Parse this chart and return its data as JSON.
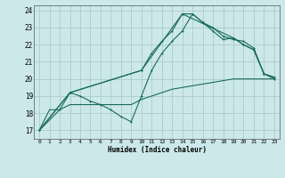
{
  "background_color": "#cce8ea",
  "grid_color": "#aacccc",
  "line_color": "#1a6b5a",
  "xlabel": "Humidex (Indice chaleur)",
  "xlim": [
    -0.5,
    23.5
  ],
  "ylim": [
    16.5,
    24.3
  ],
  "yticks": [
    17,
    18,
    19,
    20,
    21,
    22,
    23,
    24
  ],
  "xticks": [
    0,
    1,
    2,
    3,
    4,
    5,
    6,
    7,
    8,
    9,
    10,
    11,
    12,
    13,
    14,
    15,
    16,
    17,
    18,
    19,
    20,
    21,
    22,
    23
  ],
  "line1_x": [
    0,
    1,
    2,
    3,
    4,
    5,
    6,
    7,
    8,
    9,
    10,
    11,
    12,
    13,
    14,
    15,
    16,
    17,
    18,
    19,
    20,
    21,
    22,
    23
  ],
  "line1_y": [
    17.0,
    18.2,
    18.2,
    18.5,
    18.5,
    18.5,
    18.5,
    18.5,
    18.5,
    18.5,
    18.8,
    19.0,
    19.2,
    19.4,
    19.5,
    19.6,
    19.7,
    19.8,
    19.9,
    20.0,
    20.0,
    20.0,
    20.0,
    20.0
  ],
  "line2_x": [
    0,
    2,
    3,
    4,
    5,
    6,
    7,
    8,
    9,
    10,
    11,
    12,
    13,
    14,
    15,
    16,
    17,
    18,
    19,
    20,
    21,
    22,
    23
  ],
  "line2_y": [
    17.0,
    18.2,
    19.2,
    19.0,
    18.7,
    18.5,
    18.2,
    17.8,
    17.5,
    19.0,
    20.5,
    21.5,
    22.2,
    22.8,
    23.8,
    23.3,
    23.0,
    22.5,
    22.3,
    22.2,
    21.8,
    20.3,
    20.0
  ],
  "line3_x": [
    0,
    3,
    10,
    11,
    12,
    13,
    14,
    15,
    16,
    17,
    18,
    19,
    20,
    21,
    22,
    23
  ],
  "line3_y": [
    17.0,
    19.2,
    20.5,
    21.5,
    22.2,
    22.8,
    23.8,
    23.8,
    23.3,
    22.8,
    22.3,
    22.4,
    22.0,
    21.7,
    20.3,
    20.1
  ],
  "line4_x": [
    0,
    3,
    10,
    14,
    19,
    20,
    21,
    22,
    23
  ],
  "line4_y": [
    17.0,
    19.2,
    20.5,
    23.8,
    22.4,
    22.0,
    21.7,
    20.3,
    20.1
  ]
}
